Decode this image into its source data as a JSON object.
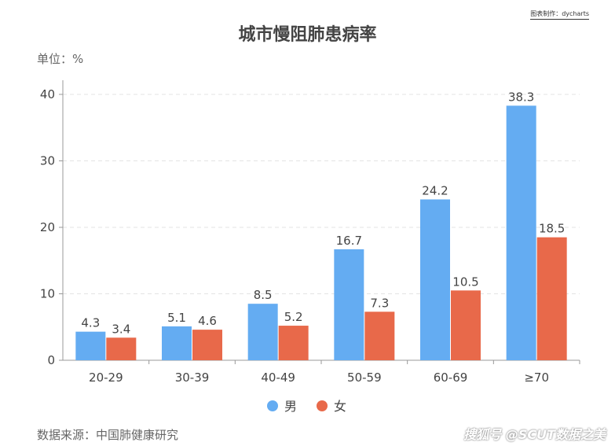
{
  "credit": "图表制作：dycharts",
  "unit_label": "单位：%",
  "source": "数据来源：中国肺健康研究",
  "watermark": "搜狐号 @SCUT数据之美",
  "colors": {
    "male": "#64acf2",
    "female": "#e8694a"
  },
  "chart_data": {
    "type": "bar",
    "title": "城市慢阻肺患病率",
    "categories": [
      "20-29",
      "30-39",
      "40-49",
      "50-59",
      "60-69",
      "≥70"
    ],
    "series": [
      {
        "name": "男",
        "values": [
          4.3,
          5.1,
          8.5,
          16.7,
          24.2,
          38.3
        ]
      },
      {
        "name": "女",
        "values": [
          3.4,
          4.6,
          5.2,
          7.3,
          10.5,
          18.5
        ]
      }
    ],
    "ylim": [
      0,
      40
    ],
    "yticks": [
      0,
      10,
      20,
      30,
      40
    ],
    "grid": true,
    "legend_position": "bottom"
  }
}
